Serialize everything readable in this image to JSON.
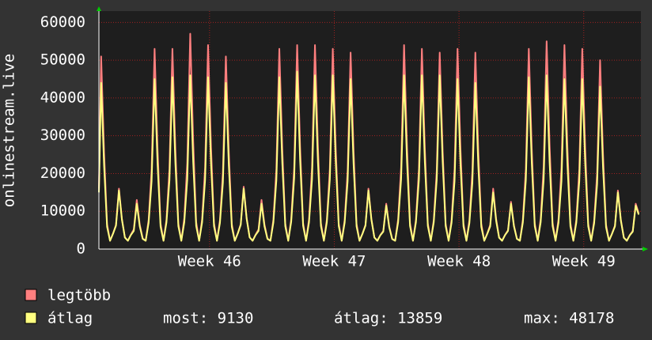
{
  "chart_data": {
    "type": "line",
    "y_label": "onlinestream.live",
    "xlim": [
      0,
      730
    ],
    "ylim": [
      0,
      63000
    ],
    "yticks": [
      0,
      10000,
      20000,
      30000,
      40000,
      50000,
      60000
    ],
    "xticks": [
      {
        "value": 149,
        "label": "Week 46"
      },
      {
        "value": 317,
        "label": "Week 47"
      },
      {
        "value": 485,
        "label": "Week 48"
      },
      {
        "value": 653,
        "label": "Week 49"
      }
    ],
    "grid": true,
    "x": [
      0,
      3,
      7,
      11,
      15,
      19,
      23,
      27,
      31,
      35,
      39,
      43,
      47,
      51,
      55,
      59,
      63,
      67,
      71,
      75,
      79,
      83,
      87,
      91,
      95,
      99,
      103,
      107,
      111,
      115,
      119,
      123,
      127,
      131,
      135,
      139,
      143,
      147,
      151,
      155,
      159,
      163,
      167,
      171,
      175,
      179,
      183,
      187,
      191,
      195,
      199,
      203,
      207,
      211,
      215,
      219,
      223,
      227,
      231,
      235,
      239,
      243,
      247,
      251,
      255,
      259,
      263,
      267,
      271,
      275,
      279,
      283,
      287,
      291,
      295,
      299,
      303,
      307,
      311,
      315,
      319,
      323,
      327,
      331,
      335,
      339,
      343,
      347,
      351,
      355,
      359,
      363,
      367,
      371,
      375,
      379,
      383,
      387,
      391,
      395,
      399,
      403,
      407,
      411,
      415,
      419,
      423,
      427,
      431,
      435,
      439,
      443,
      447,
      451,
      455,
      459,
      463,
      467,
      471,
      475,
      479,
      483,
      487,
      491,
      495,
      499,
      503,
      507,
      511,
      515,
      519,
      523,
      527,
      531,
      535,
      539,
      543,
      547,
      551,
      555,
      559,
      563,
      567,
      571,
      575,
      579,
      583,
      587,
      591,
      595,
      599,
      603,
      607,
      611,
      615,
      619,
      623,
      627,
      631,
      635,
      639,
      643,
      647,
      651,
      655,
      659,
      663,
      667,
      671,
      675,
      679,
      683,
      687,
      691,
      695,
      699,
      703,
      707,
      711,
      715,
      719,
      723,
      727
    ],
    "series": [
      {
        "name": "legtöbb",
        "color": "#ff7f7f",
        "values": [
          16000,
          51000,
          25500,
          6600,
          2200,
          4100,
          6400,
          16000,
          8000,
          3100,
          2200,
          3800,
          5200,
          13000,
          6500,
          2800,
          2200,
          7800,
          21200,
          53000,
          26500,
          6800,
          2200,
          7800,
          21200,
          53000,
          26500,
          6800,
          2200,
          8200,
          22800,
          57000,
          28500,
          7200,
          2200,
          7900,
          21600,
          54000,
          27000,
          6900,
          2200,
          7600,
          20400,
          51000,
          25500,
          6600,
          2200,
          4150,
          6600,
          16500,
          8250,
          3150,
          2200,
          3800,
          5200,
          13000,
          6500,
          2800,
          2200,
          7800,
          21200,
          53000,
          26500,
          6800,
          2200,
          7900,
          21600,
          54000,
          27000,
          6900,
          2200,
          7900,
          21600,
          54000,
          27000,
          6900,
          2200,
          7800,
          21200,
          53000,
          26500,
          6800,
          2200,
          7700,
          20800,
          52000,
          26000,
          6700,
          2200,
          4100,
          6400,
          16000,
          8000,
          3100,
          2200,
          3700,
          4800,
          12000,
          6000,
          2700,
          2200,
          7900,
          21600,
          54000,
          27000,
          6900,
          2200,
          7800,
          21200,
          53000,
          26500,
          6800,
          2200,
          7700,
          20800,
          52000,
          26000,
          6700,
          2200,
          7800,
          21200,
          53000,
          26500,
          6800,
          2200,
          7700,
          20800,
          52000,
          26000,
          6700,
          2200,
          4100,
          6400,
          16000,
          8000,
          3100,
          2200,
          3750,
          5000,
          12500,
          6250,
          2750,
          2200,
          7800,
          21200,
          53000,
          26500,
          6800,
          2200,
          8000,
          22000,
          55000,
          27500,
          7000,
          2200,
          7900,
          21600,
          54000,
          27000,
          6900,
          2200,
          7800,
          21200,
          53000,
          26500,
          6800,
          2200,
          7500,
          20000,
          50000,
          25000,
          6500,
          2200,
          4050,
          6200,
          15500,
          7750,
          3050,
          2200,
          3700,
          4800,
          12000,
          9500
        ]
      },
      {
        "name": "átlag",
        "color": "#ffff80",
        "values": [
          15000,
          44000,
          22000,
          5900,
          2200,
          4050,
          6200,
          15500,
          7750,
          3050,
          2200,
          3700,
          4800,
          12000,
          6000,
          2700,
          2200,
          7000,
          18000,
          45000,
          22500,
          6000,
          2200,
          7050,
          18200,
          45500,
          22750,
          6050,
          2200,
          7100,
          18400,
          46000,
          23000,
          6100,
          2200,
          7050,
          18200,
          45500,
          22750,
          6050,
          2200,
          6900,
          17600,
          44000,
          22000,
          5900,
          2200,
          4100,
          6400,
          16000,
          8000,
          3100,
          2200,
          3700,
          4800,
          12000,
          6000,
          2700,
          2200,
          7050,
          18200,
          45500,
          22750,
          6050,
          2200,
          7200,
          18800,
          47000,
          23500,
          6200,
          2200,
          7100,
          18400,
          46000,
          23000,
          6100,
          2200,
          7100,
          18400,
          46000,
          23000,
          6100,
          2200,
          7000,
          18000,
          45000,
          22500,
          6000,
          2200,
          4050,
          6200,
          15500,
          7750,
          3050,
          2200,
          3650,
          4600,
          11500,
          5750,
          2650,
          2200,
          7100,
          18400,
          46000,
          23000,
          6100,
          2200,
          7100,
          18400,
          46000,
          23000,
          6100,
          2200,
          7100,
          18400,
          46000,
          23000,
          6100,
          2200,
          7000,
          18000,
          45000,
          22500,
          6000,
          2200,
          6900,
          17600,
          44000,
          22000,
          5900,
          2200,
          4000,
          6000,
          15000,
          7500,
          3000,
          2200,
          3700,
          4800,
          12000,
          6000,
          2700,
          2200,
          7050,
          18200,
          45500,
          22750,
          6050,
          2200,
          7100,
          18400,
          46000,
          23000,
          6100,
          2200,
          7000,
          18000,
          45000,
          22500,
          6000,
          2200,
          7000,
          18000,
          45000,
          22500,
          6000,
          2200,
          6800,
          17200,
          43000,
          21500,
          5800,
          2200,
          4000,
          6000,
          15000,
          7500,
          3000,
          2200,
          3650,
          4600,
          11500,
          9130
        ]
      }
    ],
    "stats": {
      "current": "most: 9130",
      "average": "átlag: 13859",
      "maximum": "max: 48178"
    }
  }
}
